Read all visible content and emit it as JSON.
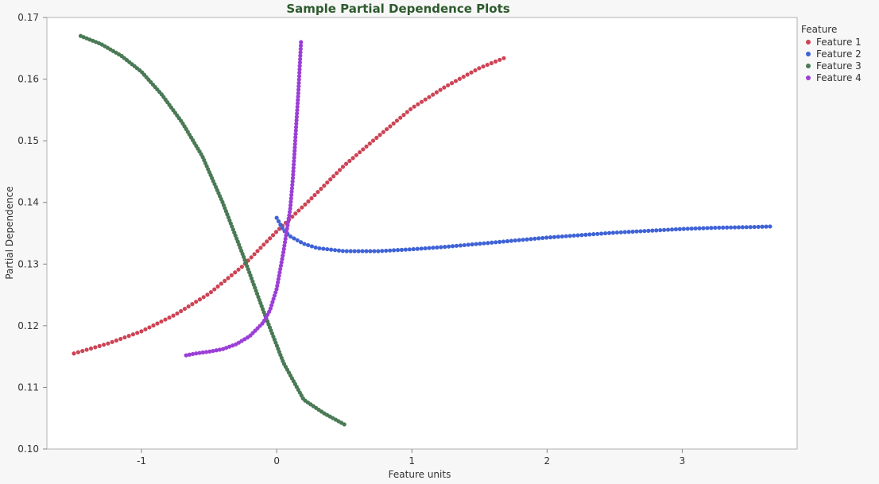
{
  "chart_data": {
    "type": "scatter",
    "title": "Sample Partial Dependence Plots",
    "xlabel": "Feature units",
    "ylabel": "Partial Dependence",
    "xlim": [
      -1.7,
      3.85
    ],
    "ylim": [
      0.1,
      0.17
    ],
    "x_ticks": [
      -1,
      0,
      1,
      2,
      3
    ],
    "x_tick_labels": [
      "-1",
      "0",
      "1",
      "2",
      "3"
    ],
    "y_ticks": [
      0.1,
      0.11,
      0.12,
      0.13,
      0.14,
      0.15,
      0.16,
      0.17
    ],
    "y_tick_labels": [
      "0.10",
      "0.11",
      "0.12",
      "0.13",
      "0.14",
      "0.15",
      "0.16",
      "0.17"
    ],
    "grid": false,
    "legend": {
      "title": "Feature",
      "position": "right"
    },
    "series": [
      {
        "name": "Feature 1",
        "color": "#cc4455",
        "x": [
          -1.5,
          -1.25,
          -1.0,
          -0.75,
          -0.5,
          -0.25,
          0.0,
          0.25,
          0.5,
          0.75,
          1.0,
          1.25,
          1.5,
          1.68
        ],
        "y": [
          0.1155,
          0.1171,
          0.1191,
          0.1218,
          0.1252,
          0.1297,
          0.1353,
          0.1405,
          0.146,
          0.1507,
          0.1553,
          0.1588,
          0.1618,
          0.1634
        ]
      },
      {
        "name": "Feature 2",
        "color": "#3f63d6",
        "x": [
          0.0,
          0.05,
          0.1,
          0.2,
          0.3,
          0.5,
          0.75,
          1.0,
          1.25,
          1.5,
          1.75,
          2.0,
          2.25,
          2.5,
          2.75,
          3.0,
          3.25,
          3.5,
          3.65
        ],
        "y": [
          0.1375,
          0.1355,
          0.1345,
          0.1333,
          0.1326,
          0.1321,
          0.1321,
          0.1324,
          0.1328,
          0.1333,
          0.1338,
          0.1343,
          0.1347,
          0.1351,
          0.1354,
          0.1357,
          0.1359,
          0.136,
          0.1361
        ]
      },
      {
        "name": "Feature 3",
        "color": "#4a7a55",
        "x": [
          -1.45,
          -1.3,
          -1.15,
          -1.0,
          -0.85,
          -0.7,
          -0.55,
          -0.4,
          -0.25,
          -0.1,
          0.05,
          0.2,
          0.35,
          0.5
        ],
        "y": [
          0.167,
          0.1657,
          0.1638,
          0.1612,
          0.1575,
          0.153,
          0.1475,
          0.14,
          0.1315,
          0.1225,
          0.114,
          0.108,
          0.1058,
          0.104
        ]
      },
      {
        "name": "Feature 4",
        "color": "#9b3fd6",
        "x": [
          -0.67,
          -0.6,
          -0.5,
          -0.4,
          -0.3,
          -0.2,
          -0.1,
          -0.05,
          0.0,
          0.05,
          0.1,
          0.12,
          0.14,
          0.16,
          0.18
        ],
        "y": [
          0.1152,
          0.1155,
          0.1158,
          0.1162,
          0.117,
          0.1183,
          0.1205,
          0.1225,
          0.126,
          0.132,
          0.139,
          0.144,
          0.151,
          0.1578,
          0.166
        ]
      }
    ]
  }
}
